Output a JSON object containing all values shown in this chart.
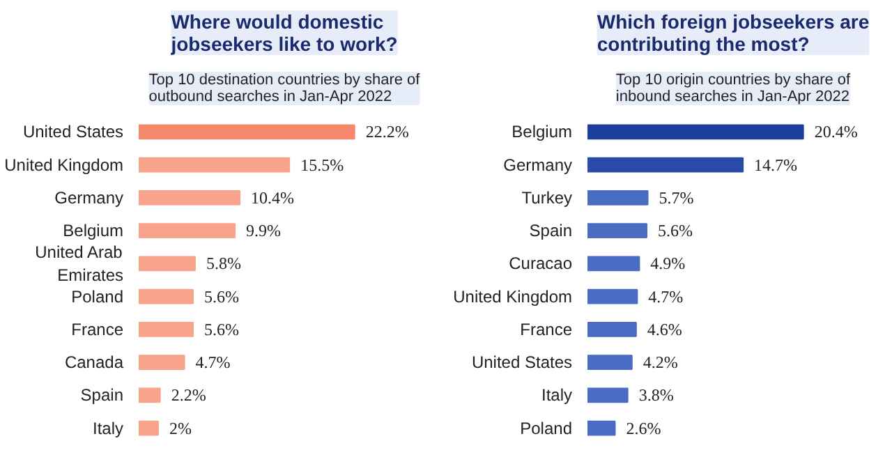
{
  "chart_data": [
    {
      "type": "bar",
      "orientation": "horizontal",
      "title": "Where would domestic\njobseekers like to work?",
      "subtitle": "Top 10 destination countries by share of\noutbound searches in Jan-Apr 2022",
      "categories": [
        "United States",
        "United Kingdom",
        "Germany",
        "Belgium",
        "United Arab\nEmirates",
        "Poland",
        "France",
        "Canada",
        "Spain",
        "Italy"
      ],
      "values": [
        22.2,
        15.5,
        10.4,
        9.9,
        5.8,
        5.6,
        5.6,
        4.7,
        2.2,
        2
      ],
      "value_labels": [
        "22.2%",
        "15.5%",
        "10.4%",
        "9.9%",
        "5.8%",
        "5.6%",
        "5.6%",
        "4.7%",
        "2.2%",
        "2%"
      ],
      "colors": [
        "#f5876b",
        "#f8a48c",
        "#f8a48c",
        "#f8a48c",
        "#f8a48c",
        "#f8a48c",
        "#f8a48c",
        "#f8a48c",
        "#f8a48c",
        "#f8a48c"
      ]
    },
    {
      "type": "bar",
      "orientation": "horizontal",
      "title": "Which foreign jobseekers are\ncontributing the most?",
      "subtitle": "Top 10 origin countries by share of\ninbound searches in Jan-Apr 2022",
      "categories": [
        "Belgium",
        "Germany",
        "Turkey",
        "Spain",
        "Curacao",
        "United Kingdom",
        "France",
        "United States",
        "Italy",
        "Poland"
      ],
      "values": [
        20.4,
        14.7,
        5.7,
        5.6,
        4.9,
        4.7,
        4.6,
        4.2,
        3.8,
        2.6
      ],
      "value_labels": [
        "20.4%",
        "14.7%",
        "5.7%",
        "5.6%",
        "4.9%",
        "4.7%",
        "4.6%",
        "4.2%",
        "3.8%",
        "2.6%"
      ],
      "colors": [
        "#1c3f9e",
        "#2a4aa8",
        "#4a6cc2",
        "#4a6cc2",
        "#4a6cc2",
        "#4a6cc2",
        "#4a6cc2",
        "#4a6cc2",
        "#4a6cc2",
        "#4a6cc2"
      ]
    }
  ]
}
